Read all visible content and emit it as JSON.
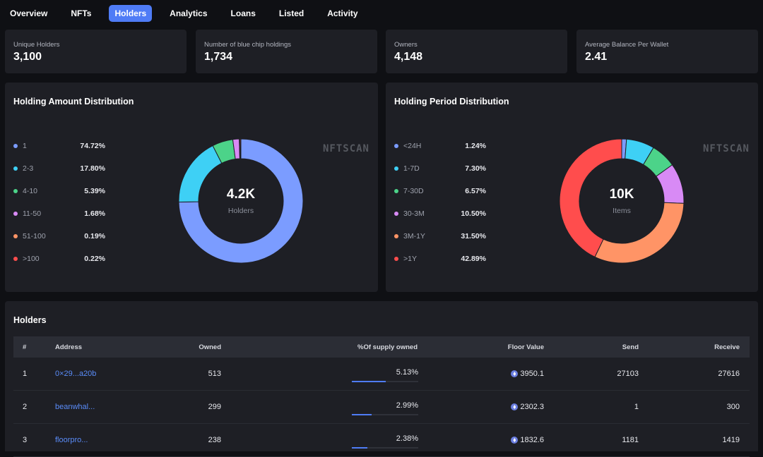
{
  "tabs": [
    "Overview",
    "NFTs",
    "Holders",
    "Analytics",
    "Loans",
    "Listed",
    "Activity"
  ],
  "active_tab": "Holders",
  "stats": [
    {
      "label": "Unique Holders",
      "value": "3,100"
    },
    {
      "label": "Number of blue chip holdings",
      "value": "1,734"
    },
    {
      "label": "Owners",
      "value": "4,148"
    },
    {
      "label": "Average Balance Per Wallet",
      "value": "2.41"
    }
  ],
  "watermark": "NFTSCAN",
  "amount_panel": {
    "title": "Holding Amount Distribution",
    "center_value": "4.2K",
    "center_caption": "Holders",
    "legend": [
      {
        "label": "1",
        "pct": "74.72%",
        "value": 74.72,
        "color": "#7b9cff"
      },
      {
        "label": "2-3",
        "pct": "17.80%",
        "value": 17.8,
        "color": "#3ed0f5"
      },
      {
        "label": "4-10",
        "pct": "5.39%",
        "value": 5.39,
        "color": "#4cd389"
      },
      {
        "label": "11-50",
        "pct": "1.68%",
        "value": 1.68,
        "color": "#d88af5"
      },
      {
        "label": "51-100",
        "pct": "0.19%",
        "value": 0.19,
        "color": "#ff9466"
      },
      {
        "label": ">100",
        "pct": "0.22%",
        "value": 0.22,
        "color": "#ff4d4d"
      }
    ]
  },
  "period_panel": {
    "title": "Holding Period Distribution",
    "center_value": "10K",
    "center_caption": "Items",
    "legend": [
      {
        "label": "<24H",
        "pct": "1.24%",
        "value": 1.24,
        "color": "#7b9cff"
      },
      {
        "label": "1-7D",
        "pct": "7.30%",
        "value": 7.3,
        "color": "#3ed0f5"
      },
      {
        "label": "7-30D",
        "pct": "6.57%",
        "value": 6.57,
        "color": "#4cd389"
      },
      {
        "label": "30-3M",
        "pct": "10.50%",
        "value": 10.5,
        "color": "#d88af5"
      },
      {
        "label": "3M-1Y",
        "pct": "31.50%",
        "value": 31.5,
        "color": "#ff9466"
      },
      {
        "label": ">1Y",
        "pct": "42.89%",
        "value": 42.89,
        "color": "#ff4d4d"
      }
    ]
  },
  "holders": {
    "title": "Holders",
    "columns": {
      "num": "#",
      "address": "Address",
      "owned": "Owned",
      "supply": "%Of supply owned",
      "floor": "Floor Value",
      "send": "Send",
      "receive": "Receive"
    },
    "rows": [
      {
        "num": "1",
        "address": "0×29...a20b",
        "owned": "513",
        "supply": "5.13%",
        "supply_value": 5.13,
        "floor": "3950.1",
        "send": "27103",
        "receive": "27616"
      },
      {
        "num": "2",
        "address": "beanwhal...",
        "owned": "299",
        "supply": "2.99%",
        "supply_value": 2.99,
        "floor": "2302.3",
        "send": "1",
        "receive": "300"
      },
      {
        "num": "3",
        "address": "floorpro...",
        "owned": "238",
        "supply": "2.38%",
        "supply_value": 2.38,
        "floor": "1832.6",
        "send": "1181",
        "receive": "1419"
      }
    ]
  }
}
